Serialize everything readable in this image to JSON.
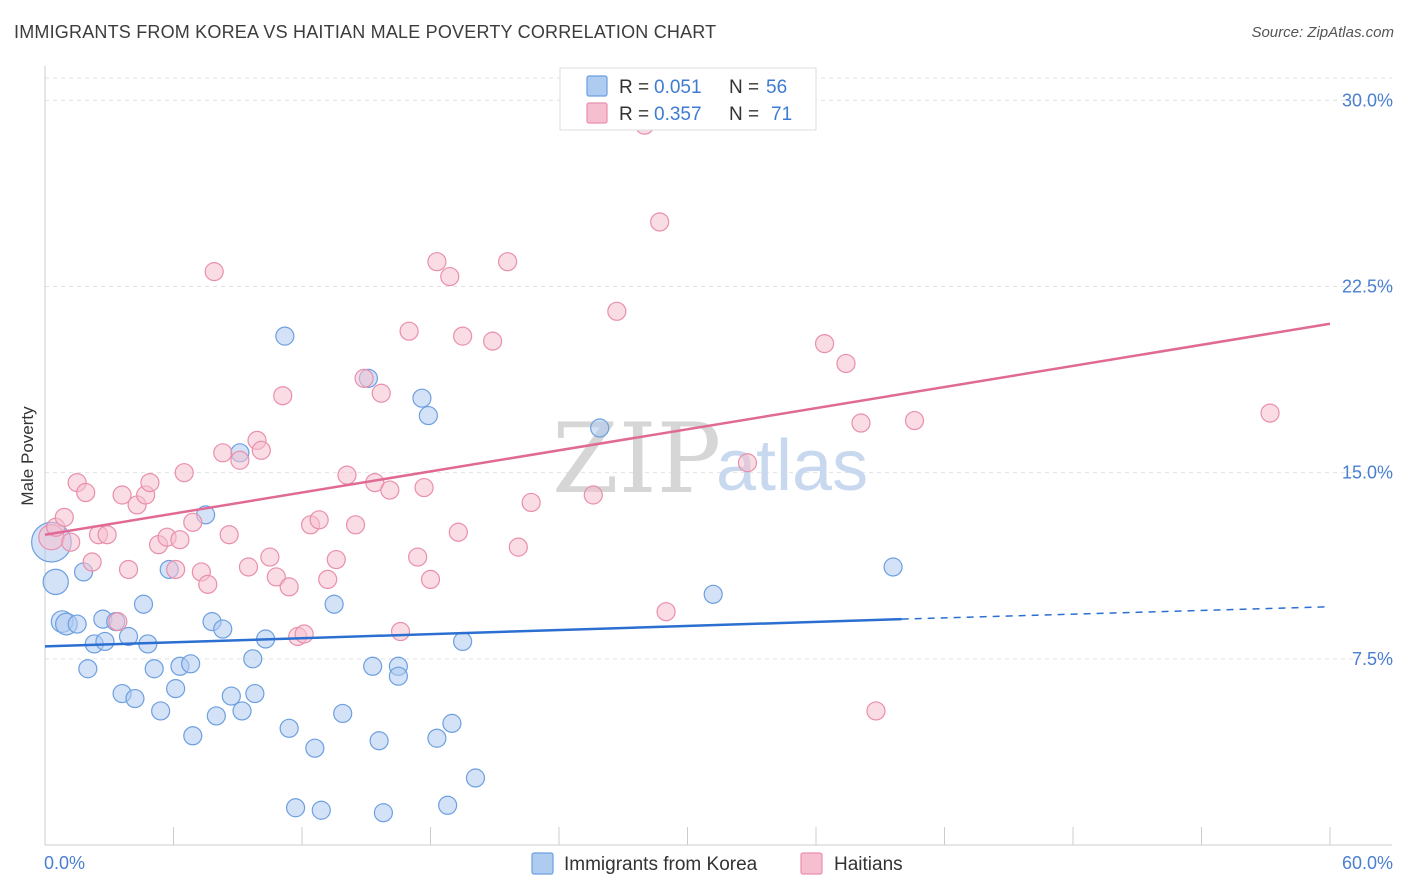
{
  "header": {
    "title": "IMMIGRANTS FROM KOREA VS HAITIAN MALE POVERTY CORRELATION CHART",
    "source": "Source: ZipAtlas.com"
  },
  "watermark": {
    "zip": "ZIP",
    "atlas": "atlas"
  },
  "legend": {
    "rows": [
      {
        "r_label": "R =",
        "r_value": "0.051",
        "n_label": "N =",
        "n_value": "56",
        "color": "#aecbf0"
      },
      {
        "r_label": "R =",
        "r_value": "0.357",
        "n_label": "N =",
        "n_value": "71",
        "color": "#f6bfd0"
      }
    ]
  },
  "bottom_legend": [
    {
      "label": "Immigrants from Korea",
      "color": "#aecbf0"
    },
    {
      "label": "Haitians",
      "color": "#f6bfd0"
    }
  ],
  "chart_data": {
    "type": "scatter",
    "title": "IMMIGRANTS FROM KOREA VS HAITIAN MALE POVERTY CORRELATION CHART",
    "xlabel": "",
    "ylabel": "Male Poverty",
    "xlim": [
      0,
      60
    ],
    "ylim": [
      0,
      30.9
    ],
    "x_tick_labels": [
      "0.0%",
      "60.0%"
    ],
    "y_ticks": [
      7.5,
      15.0,
      22.5,
      30.0
    ],
    "y_tick_labels": [
      "7.5%",
      "15.0%",
      "22.5%",
      "30.0%"
    ],
    "grid": true,
    "legend_position": "top-center",
    "colors": {
      "korea_fill": "#aecbf0",
      "korea_stroke": "#6d9fe0",
      "korea_line": "#2b6fd1",
      "haiti_fill": "#f6bfd0",
      "haiti_stroke": "#e98fac",
      "haiti_line": "#e06a94"
    },
    "series": [
      {
        "name": "Immigrants from Korea",
        "points": [
          [
            0.3,
            12.2,
            2.2
          ],
          [
            0.5,
            10.6,
            1.4
          ],
          [
            0.8,
            9.0,
            1.2
          ],
          [
            1.0,
            8.9,
            1.2
          ],
          [
            1.5,
            8.9,
            1
          ],
          [
            1.8,
            11.0,
            1
          ],
          [
            2.0,
            7.1,
            1
          ],
          [
            2.3,
            8.1,
            1
          ],
          [
            2.8,
            8.2,
            1
          ],
          [
            2.7,
            9.1,
            1
          ],
          [
            3.3,
            9.0,
            1
          ],
          [
            3.9,
            8.4,
            1
          ],
          [
            3.6,
            6.1,
            1
          ],
          [
            4.2,
            5.9,
            1
          ],
          [
            4.6,
            9.7,
            1
          ],
          [
            4.8,
            8.1,
            1
          ],
          [
            5.1,
            7.1,
            1
          ],
          [
            5.4,
            5.4,
            1
          ],
          [
            5.8,
            11.1,
            1
          ],
          [
            6.1,
            6.3,
            1
          ],
          [
            6.3,
            7.2,
            1
          ],
          [
            6.8,
            7.3,
            1
          ],
          [
            6.9,
            4.4,
            1
          ],
          [
            7.5,
            13.3,
            1
          ],
          [
            7.8,
            9.0,
            1
          ],
          [
            8.0,
            5.2,
            1
          ],
          [
            8.3,
            8.7,
            1
          ],
          [
            8.7,
            6.0,
            1
          ],
          [
            9.1,
            15.8,
            1
          ],
          [
            9.2,
            5.4,
            1
          ],
          [
            9.7,
            7.5,
            1
          ],
          [
            9.8,
            6.1,
            1
          ],
          [
            10.3,
            8.3,
            1
          ],
          [
            11.2,
            20.5,
            1
          ],
          [
            11.4,
            4.7,
            1
          ],
          [
            11.7,
            1.5,
            1
          ],
          [
            12.6,
            3.9,
            1
          ],
          [
            12.9,
            1.4,
            1
          ],
          [
            13.5,
            9.7,
            1
          ],
          [
            13.9,
            5.3,
            1
          ],
          [
            15.1,
            18.8,
            1
          ],
          [
            15.3,
            7.2,
            1
          ],
          [
            15.6,
            4.2,
            1
          ],
          [
            15.8,
            1.3,
            1
          ],
          [
            16.5,
            7.2,
            1
          ],
          [
            16.5,
            6.8,
            1
          ],
          [
            17.6,
            18.0,
            1
          ],
          [
            17.9,
            17.3,
            1
          ],
          [
            18.3,
            4.3,
            1
          ],
          [
            18.8,
            1.6,
            1
          ],
          [
            19.0,
            4.9,
            1
          ],
          [
            19.5,
            8.2,
            1
          ],
          [
            20.1,
            2.7,
            1
          ],
          [
            25.9,
            16.8,
            1
          ],
          [
            31.2,
            10.1,
            1
          ],
          [
            39.6,
            11.2,
            1
          ]
        ],
        "trend": {
          "x1": 0,
          "y1": 8.0,
          "x2": 40.0,
          "y2": 9.1,
          "dash_x2": 60.0,
          "dash_y2": 9.6
        }
      },
      {
        "name": "Haitians",
        "points": [
          [
            0.3,
            12.4,
            1.4
          ],
          [
            0.5,
            12.8,
            1
          ],
          [
            0.9,
            13.2,
            1
          ],
          [
            1.2,
            12.2,
            1
          ],
          [
            1.5,
            14.6,
            1
          ],
          [
            1.9,
            14.2,
            1
          ],
          [
            2.2,
            11.4,
            1
          ],
          [
            2.5,
            12.5,
            1
          ],
          [
            2.9,
            12.5,
            1
          ],
          [
            3.4,
            9.0,
            1
          ],
          [
            3.6,
            14.1,
            1
          ],
          [
            3.9,
            11.1,
            1
          ],
          [
            4.3,
            13.7,
            1
          ],
          [
            4.7,
            14.1,
            1
          ],
          [
            4.9,
            14.6,
            1
          ],
          [
            5.3,
            12.1,
            1
          ],
          [
            5.7,
            12.4,
            1
          ],
          [
            6.1,
            11.1,
            1
          ],
          [
            6.3,
            12.3,
            1
          ],
          [
            6.5,
            15.0,
            1
          ],
          [
            6.9,
            13.0,
            1
          ],
          [
            7.3,
            11.0,
            1
          ],
          [
            7.6,
            10.5,
            1
          ],
          [
            7.9,
            23.1,
            1
          ],
          [
            8.3,
            15.8,
            1
          ],
          [
            8.6,
            12.5,
            1
          ],
          [
            9.1,
            15.5,
            1
          ],
          [
            9.5,
            11.2,
            1
          ],
          [
            9.9,
            16.3,
            1
          ],
          [
            10.1,
            15.9,
            1
          ],
          [
            10.5,
            11.6,
            1
          ],
          [
            10.8,
            10.8,
            1
          ],
          [
            11.1,
            18.1,
            1
          ],
          [
            11.4,
            10.4,
            1
          ],
          [
            11.8,
            8.4,
            1
          ],
          [
            12.1,
            8.5,
            1
          ],
          [
            12.4,
            12.9,
            1
          ],
          [
            12.8,
            13.1,
            1
          ],
          [
            13.2,
            10.7,
            1
          ],
          [
            13.6,
            11.5,
            1
          ],
          [
            14.1,
            14.9,
            1
          ],
          [
            14.5,
            12.9,
            1
          ],
          [
            14.9,
            18.8,
            1
          ],
          [
            15.4,
            14.6,
            1
          ],
          [
            15.7,
            18.2,
            1
          ],
          [
            16.1,
            14.3,
            1
          ],
          [
            16.6,
            8.6,
            1
          ],
          [
            17.0,
            20.7,
            1
          ],
          [
            17.4,
            11.6,
            1
          ],
          [
            17.7,
            14.4,
            1
          ],
          [
            18.0,
            10.7,
            1
          ],
          [
            18.3,
            23.5,
            1
          ],
          [
            18.9,
            22.9,
            1
          ],
          [
            19.3,
            12.6,
            1
          ],
          [
            19.5,
            20.5,
            1
          ],
          [
            20.9,
            20.3,
            1
          ],
          [
            21.6,
            23.5,
            1
          ],
          [
            22.1,
            12.0,
            1
          ],
          [
            22.7,
            13.8,
            1
          ],
          [
            25.6,
            14.1,
            1
          ],
          [
            26.7,
            21.5,
            1
          ],
          [
            28.0,
            29.0,
            1
          ],
          [
            28.7,
            25.1,
            1
          ],
          [
            29.0,
            9.4,
            1
          ],
          [
            32.8,
            15.4,
            1
          ],
          [
            36.4,
            20.2,
            1
          ],
          [
            37.4,
            19.4,
            1
          ],
          [
            38.1,
            17.0,
            1
          ],
          [
            38.8,
            5.4,
            1
          ],
          [
            40.6,
            17.1,
            1
          ],
          [
            57.2,
            17.4,
            1
          ]
        ],
        "trend": {
          "x1": 0,
          "y1": 12.5,
          "x2": 60.0,
          "y2": 21.0
        }
      }
    ]
  }
}
